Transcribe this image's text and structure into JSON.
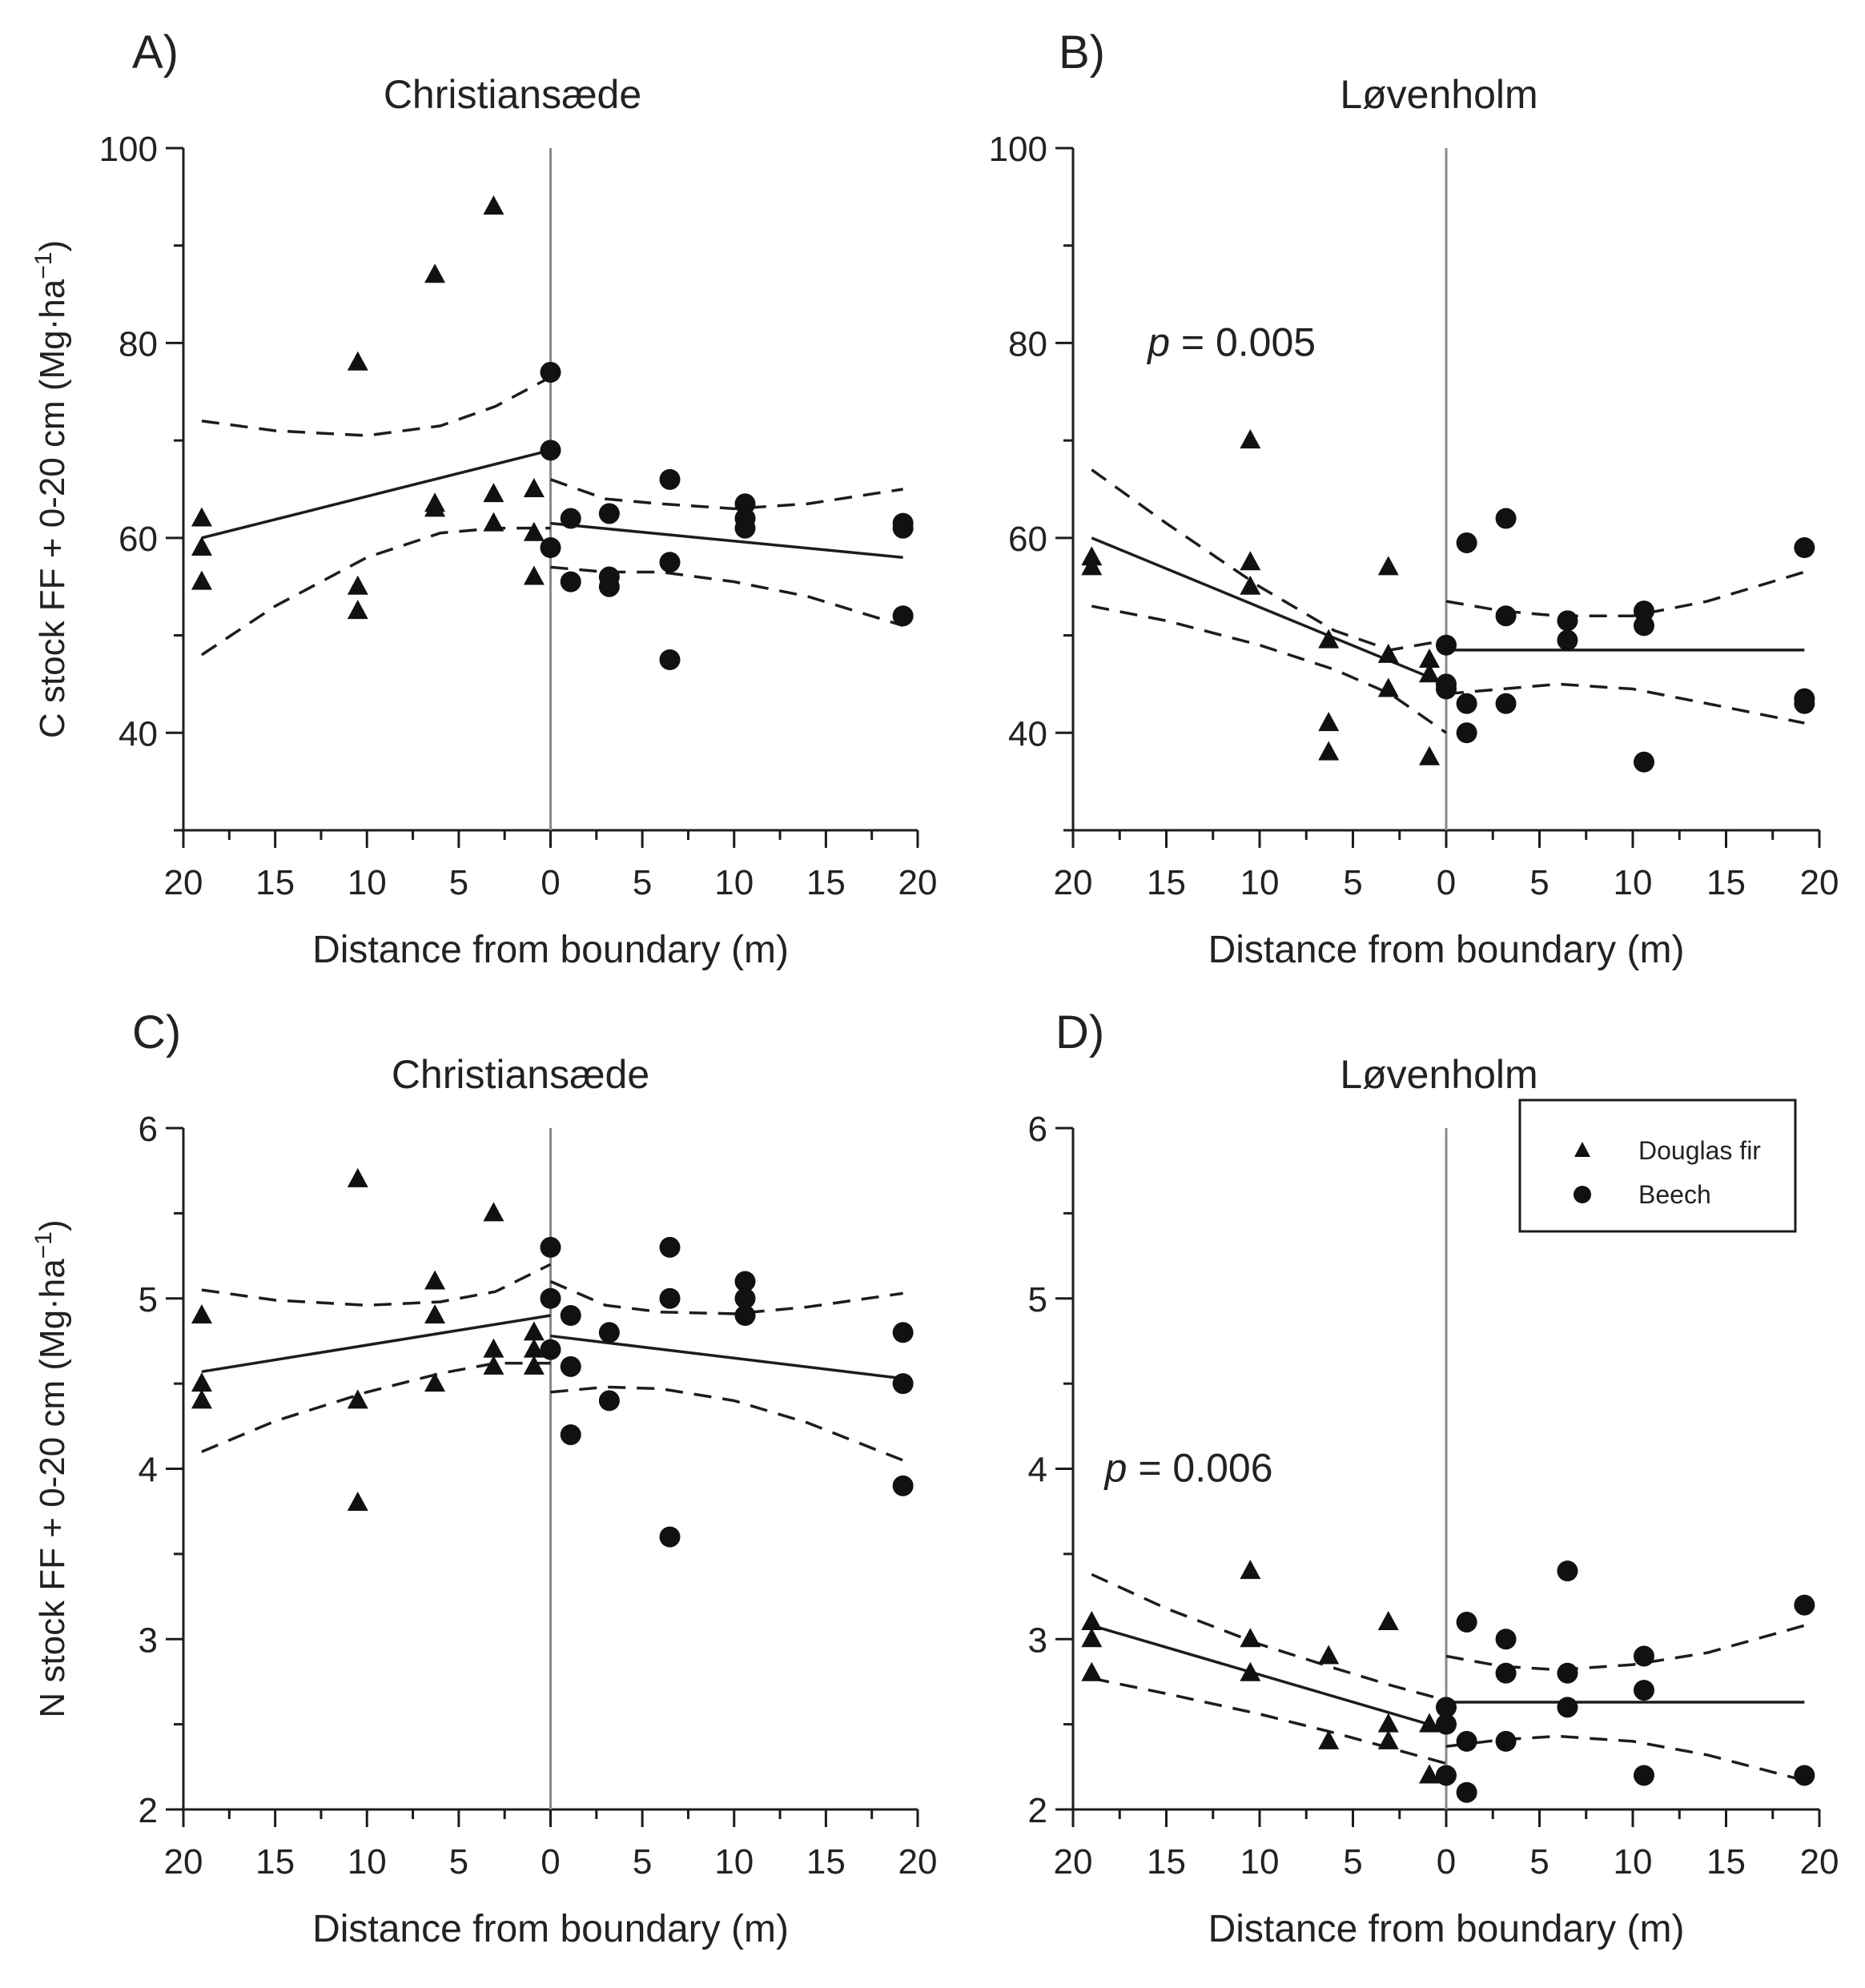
{
  "chart_data": [
    {
      "type": "scatter",
      "panel_label": "A)",
      "title": "Christiansæde",
      "xlabel": "Distance from boundary  (m)",
      "ylabel": "C stock FF + 0-20 cm (Mg·ha",
      "ylabel_sup": "−1",
      "ylabel_close": ")",
      "ylim": [
        30,
        100
      ],
      "yticks": [
        40,
        60,
        80,
        100
      ],
      "xlim": [
        -20,
        20
      ],
      "xticks": [
        -20,
        -15,
        -10,
        -5,
        0,
        5,
        10,
        15,
        20
      ],
      "xtick_labels": [
        "20",
        "15",
        "10",
        "5",
        "0",
        "5",
        "10",
        "15",
        "20"
      ],
      "annotation": null,
      "series": [
        {
          "name": "Douglas fir",
          "marker": "triangle",
          "x": [
            -19,
            -19,
            -19,
            -10.5,
            -10.5,
            -10.5,
            -6.3,
            -6.3,
            -6.3,
            -3.1,
            -3.1,
            -3.1,
            -0.9,
            -0.9,
            -0.9
          ],
          "y": [
            62,
            59,
            55.5,
            78,
            55,
            52.5,
            87,
            63.5,
            63,
            94,
            64.5,
            61.5,
            65,
            60.5,
            56
          ]
        },
        {
          "name": "Beech",
          "marker": "circle",
          "x": [
            0,
            0,
            0,
            1.1,
            1.1,
            3.2,
            3.2,
            3.2,
            6.5,
            6.5,
            6.5,
            10.6,
            10.6,
            10.6,
            19.2,
            19.2,
            19.2
          ],
          "y": [
            77,
            69,
            59,
            62,
            55.5,
            62.5,
            56,
            55,
            66,
            57.5,
            47.5,
            63.5,
            62,
            61,
            61.5,
            61,
            52
          ]
        }
      ],
      "fits": [
        {
          "x": [
            -19,
            0
          ],
          "y": [
            60,
            69
          ],
          "style": "solid"
        },
        {
          "x": [
            0,
            19.2
          ],
          "y": [
            61.5,
            58
          ],
          "style": "solid"
        }
      ],
      "confidence_bands": [
        {
          "x": [
            -19,
            -15,
            -10,
            -6,
            -3,
            0
          ],
          "upper": [
            72,
            71,
            70.5,
            71.5,
            73.5,
            76.5
          ],
          "lower": [
            48,
            53,
            58,
            60.5,
            61,
            61
          ]
        },
        {
          "x": [
            0,
            3,
            6,
            10,
            14,
            19.2
          ],
          "upper": [
            66,
            64,
            63.5,
            63,
            63.5,
            65
          ],
          "lower": [
            57,
            56.5,
            56.5,
            55.5,
            54,
            51
          ]
        }
      ]
    },
    {
      "type": "scatter",
      "panel_label": "B)",
      "title": "Løvenholm",
      "xlabel": "Distance from boundary  (m)",
      "ylabel": "",
      "ylabel_sup": "",
      "ylabel_close": "",
      "ylim": [
        30,
        100
      ],
      "yticks": [
        40,
        60,
        80,
        100
      ],
      "xlim": [
        -20,
        20
      ],
      "xticks": [
        -20,
        -15,
        -10,
        -5,
        0,
        5,
        10,
        15,
        20
      ],
      "xtick_labels": [
        "20",
        "15",
        "10",
        "5",
        "0",
        "5",
        "10",
        "15",
        "20"
      ],
      "annotation": {
        "italic": "p",
        "rest": " = 0.005",
        "x": -16,
        "y": 80
      },
      "series": [
        {
          "name": "Douglas fir",
          "marker": "triangle",
          "x": [
            -19,
            -19,
            -10.5,
            -10.5,
            -10.5,
            -6.3,
            -6.3,
            -6.3,
            -3.1,
            -3.1,
            -3.1,
            -0.9,
            -0.9,
            -0.9
          ],
          "y": [
            58,
            57,
            70,
            57.5,
            55,
            49.5,
            41,
            38,
            57,
            48,
            44.5,
            47.5,
            46,
            37.5
          ]
        },
        {
          "name": "Beech",
          "marker": "circle",
          "x": [
            0,
            0,
            0,
            1.1,
            1.1,
            1.1,
            3.2,
            3.2,
            3.2,
            6.5,
            6.5,
            10.6,
            10.6,
            10.6,
            19.2,
            19.2,
            19.2
          ],
          "y": [
            49,
            45,
            44.5,
            59.5,
            43,
            40,
            62,
            52,
            43,
            51.5,
            49.5,
            52.5,
            51,
            37,
            59,
            43.5,
            43
          ]
        }
      ],
      "fits": [
        {
          "x": [
            -19,
            0
          ],
          "y": [
            60,
            45
          ],
          "style": "solid"
        },
        {
          "x": [
            0,
            19.2
          ],
          "y": [
            48.5,
            48.5
          ],
          "style": "solid"
        }
      ],
      "confidence_bands": [
        {
          "x": [
            -19,
            -15,
            -10,
            -6,
            -3,
            0
          ],
          "upper": [
            67,
            61.5,
            55,
            50.5,
            48.5,
            49.5
          ],
          "lower": [
            53,
            51.5,
            49,
            46.5,
            44,
            40
          ]
        },
        {
          "x": [
            0,
            3,
            6,
            10,
            14,
            19.2
          ],
          "upper": [
            53.5,
            52.5,
            52,
            52,
            53.5,
            56.5
          ],
          "lower": [
            44,
            44.5,
            45,
            44.5,
            43,
            41
          ]
        }
      ]
    },
    {
      "type": "scatter",
      "panel_label": "C)",
      "title": "Christiansæde",
      "xlabel": "Distance from boundary  (m)",
      "ylabel": "N stock FF + 0-20 cm (Mg·ha",
      "ylabel_sup": "−1",
      "ylabel_close": ")",
      "ylim": [
        2,
        6
      ],
      "yticks": [
        2,
        3,
        4,
        5,
        6
      ],
      "xlim": [
        -20,
        20
      ],
      "xticks": [
        -20,
        -15,
        -10,
        -5,
        0,
        5,
        10,
        15,
        20
      ],
      "xtick_labels": [
        "20",
        "15",
        "10",
        "5",
        "0",
        "5",
        "10",
        "15",
        "20"
      ],
      "annotation": null,
      "series": [
        {
          "name": "Douglas fir",
          "marker": "triangle",
          "x": [
            -19,
            -19,
            -19,
            -10.5,
            -10.5,
            -10.5,
            -6.3,
            -6.3,
            -6.3,
            -3.1,
            -3.1,
            -3.1,
            -0.9,
            -0.9,
            -0.9
          ],
          "y": [
            4.9,
            4.5,
            4.4,
            5.7,
            4.4,
            3.8,
            5.1,
            4.9,
            4.5,
            5.5,
            4.7,
            4.6,
            4.8,
            4.7,
            4.6
          ]
        },
        {
          "name": "Beech",
          "marker": "circle",
          "x": [
            0,
            0,
            0,
            1.1,
            1.1,
            1.1,
            3.2,
            3.2,
            6.5,
            6.5,
            6.5,
            10.6,
            10.6,
            10.6,
            19.2,
            19.2,
            19.2
          ],
          "y": [
            5.3,
            5.0,
            4.7,
            4.9,
            4.6,
            4.2,
            4.8,
            4.4,
            5.3,
            5.0,
            3.6,
            5.1,
            5.0,
            4.9,
            4.8,
            4.5,
            3.9
          ]
        }
      ],
      "fits": [
        {
          "x": [
            -19,
            0
          ],
          "y": [
            4.57,
            4.9
          ],
          "style": "solid"
        },
        {
          "x": [
            0,
            19.2
          ],
          "y": [
            4.78,
            4.53
          ],
          "style": "solid"
        }
      ],
      "confidence_bands": [
        {
          "x": [
            -19,
            -15,
            -10,
            -6,
            -3,
            0
          ],
          "upper": [
            5.05,
            4.99,
            4.96,
            4.98,
            5.04,
            5.2
          ],
          "lower": [
            4.1,
            4.28,
            4.45,
            4.56,
            4.62,
            4.62
          ]
        },
        {
          "x": [
            0,
            3,
            6,
            10,
            14,
            19.2
          ],
          "upper": [
            5.1,
            4.96,
            4.92,
            4.91,
            4.95,
            5.03
          ],
          "lower": [
            4.45,
            4.48,
            4.47,
            4.4,
            4.27,
            4.05
          ]
        }
      ]
    },
    {
      "type": "scatter",
      "panel_label": "D)",
      "title": "Løvenholm",
      "xlabel": "Distance from boundary  (m)",
      "ylabel": "",
      "ylabel_sup": "",
      "ylabel_close": "",
      "ylim": [
        2,
        6
      ],
      "yticks": [
        2,
        3,
        4,
        5,
        6
      ],
      "xlim": [
        -20,
        20
      ],
      "xticks": [
        -20,
        -15,
        -10,
        -5,
        0,
        5,
        10,
        15,
        20
      ],
      "xtick_labels": [
        "20",
        "15",
        "10",
        "5",
        "0",
        "5",
        "10",
        "15",
        "20"
      ],
      "annotation": {
        "italic": "p",
        "rest": " = 0.006",
        "x": -18.3,
        "y": 4.0
      },
      "legend": {
        "position": "top-right",
        "entries": [
          "Douglas fir",
          "Beech"
        ]
      },
      "series": [
        {
          "name": "Douglas fir",
          "marker": "triangle",
          "x": [
            -19,
            -19,
            -19,
            -10.5,
            -10.5,
            -10.5,
            -6.3,
            -6.3,
            -3.1,
            -3.1,
            -3.1,
            -0.9,
            -0.9
          ],
          "y": [
            3.1,
            3.0,
            2.8,
            3.4,
            3.0,
            2.8,
            2.9,
            2.4,
            3.1,
            2.5,
            2.4,
            2.5,
            2.2
          ]
        },
        {
          "name": "Beech",
          "marker": "circle",
          "x": [
            0,
            0,
            0,
            1.1,
            1.1,
            1.1,
            3.2,
            3.2,
            3.2,
            6.5,
            6.5,
            6.5,
            10.6,
            10.6,
            10.6,
            19.2,
            19.2
          ],
          "y": [
            2.6,
            2.5,
            2.2,
            3.1,
            2.4,
            2.1,
            3.0,
            2.8,
            2.4,
            3.4,
            2.8,
            2.6,
            2.9,
            2.7,
            2.2,
            3.2,
            2.2
          ]
        }
      ],
      "fits": [
        {
          "x": [
            -19,
            0
          ],
          "y": [
            3.08,
            2.47
          ],
          "style": "solid"
        },
        {
          "x": [
            0,
            19.2
          ],
          "y": [
            2.63,
            2.63
          ],
          "style": "solid"
        }
      ],
      "confidence_bands": [
        {
          "x": [
            -19,
            -15,
            -10,
            -6,
            -3,
            0
          ],
          "upper": [
            3.38,
            3.18,
            2.97,
            2.83,
            2.73,
            2.64
          ],
          "lower": [
            2.77,
            2.68,
            2.56,
            2.45,
            2.36,
            2.27
          ]
        },
        {
          "x": [
            0,
            3,
            6,
            10,
            14,
            19.2
          ],
          "upper": [
            2.9,
            2.84,
            2.82,
            2.85,
            2.92,
            3.08
          ],
          "lower": [
            2.37,
            2.41,
            2.43,
            2.4,
            2.32,
            2.17
          ]
        }
      ]
    }
  ]
}
